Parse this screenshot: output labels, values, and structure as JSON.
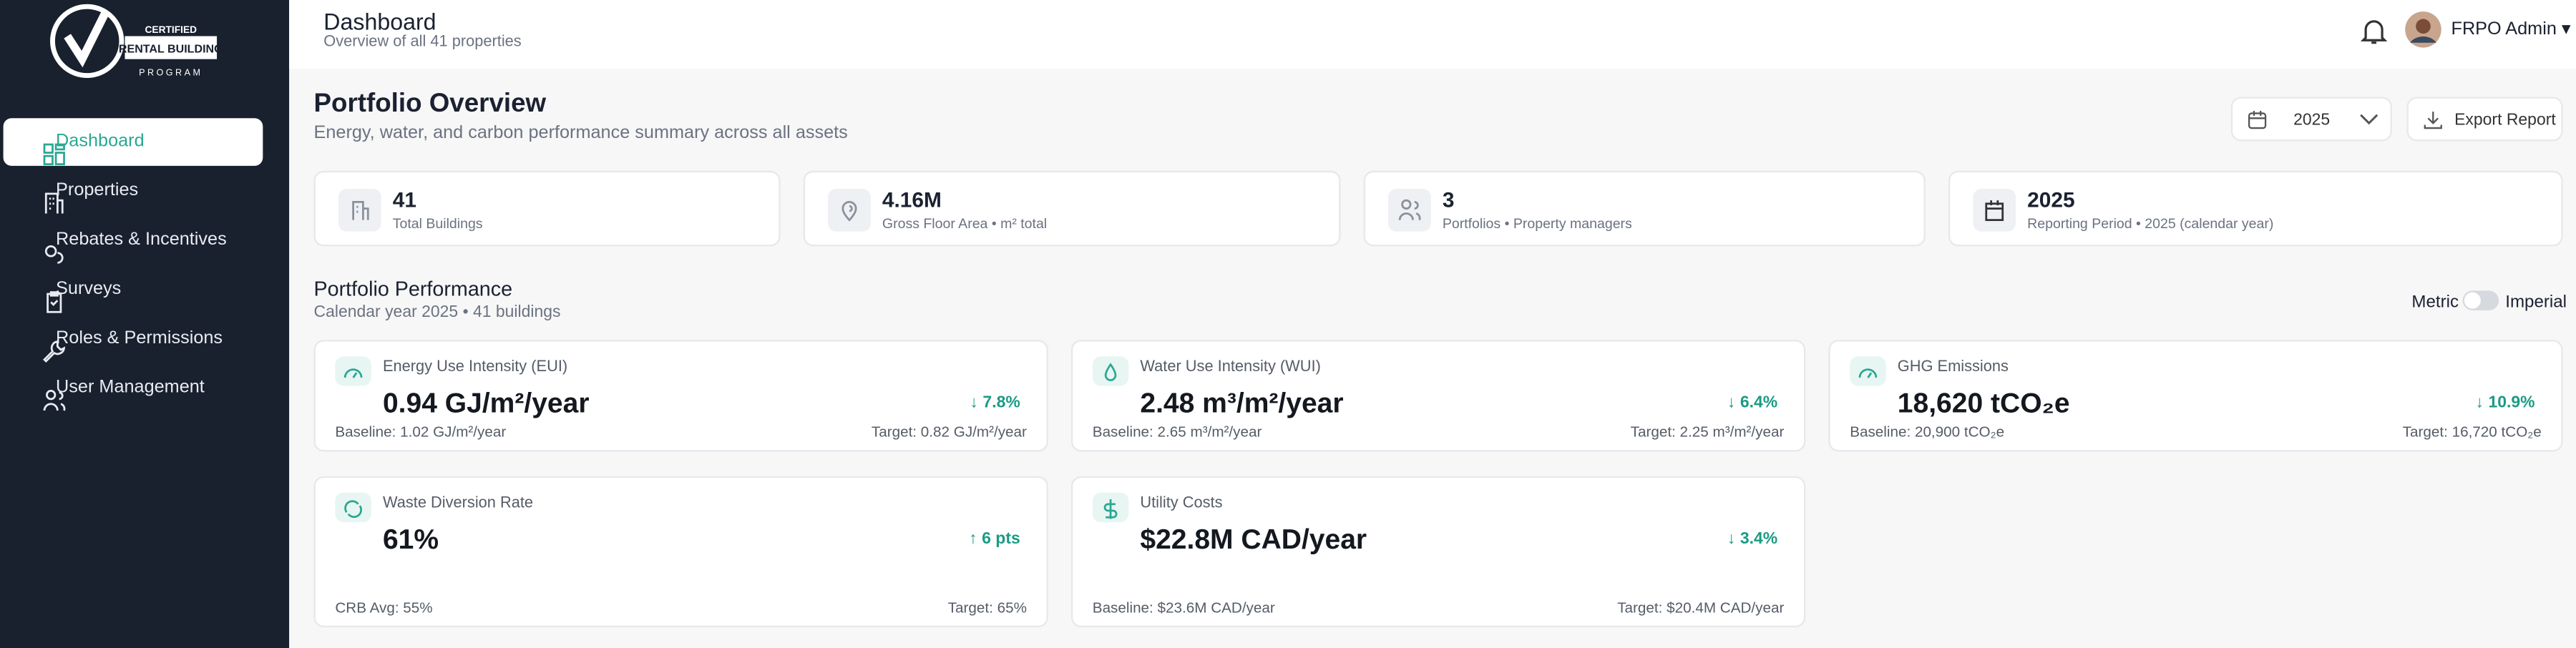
{
  "sidebar": {
    "logo": {
      "line1": "CERTIFIED",
      "line2": "RENTAL BUILDING",
      "line3": "PROGRAM"
    },
    "nav": [
      "Dashboard",
      "Properties",
      "Rebates & Incentives",
      "Surveys",
      "Roles & Permissions",
      "User Management"
    ]
  },
  "header": {
    "title": "Dashboard",
    "subtitle": "Overview of all 41 properties",
    "user": "FRPO Admin"
  },
  "overview": {
    "title": "Portfolio Overview",
    "subtitle": "Energy, water, and carbon performance summary across all assets",
    "year": "2025",
    "export": "Export Report"
  },
  "stats": [
    {
      "value": "41",
      "label": "Total Buildings"
    },
    {
      "value": "4.16M",
      "label": "Gross Floor Area • m² total"
    },
    {
      "value": "3",
      "label": "Portfolios • Property managers"
    },
    {
      "value": "2025",
      "label": "Reporting Period • 2025 (calendar year)"
    }
  ],
  "performance": {
    "title": "Portfolio Performance",
    "subtitle": "Calendar year 2025 • 41 buildings",
    "metric": "Metric",
    "imperial": "Imperial",
    "cards": [
      {
        "title": "Energy Use Intensity (EUI)",
        "value": "0.94 GJ/m²/year",
        "change": "↓ 7.8%",
        "left": "Baseline: 1.02 GJ/m²/year",
        "right": "Target: 0.82 GJ/m²/year"
      },
      {
        "title": "Water Use Intensity (WUI)",
        "value": "2.48 m³/m²/year",
        "change": "↓ 6.4%",
        "left": "Baseline: 2.65 m³/m²/year",
        "right": "Target: 2.25 m³/m²/year"
      },
      {
        "title": "GHG Emissions",
        "value": "18,620 tCO₂e",
        "change": "↓ 10.9%",
        "left": "Baseline: 20,900 tCO₂e",
        "right": "Target: 16,720 tCO₂e"
      },
      {
        "title": "Waste Diversion Rate",
        "value": "61%",
        "change": "↑ 6 pts",
        "left": "CRB Avg: 55%",
        "right": "Target: 65%"
      },
      {
        "title": "Utility Costs",
        "value": "$22.8M CAD/year",
        "change": "↓ 3.4%",
        "left": "Baseline: $23.6M CAD/year",
        "right": "Target: $20.4M CAD/year"
      }
    ]
  }
}
